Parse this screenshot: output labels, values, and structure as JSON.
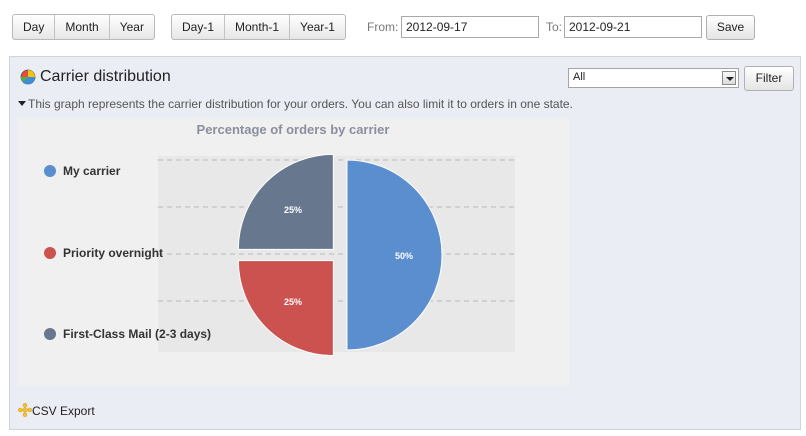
{
  "toolbar": {
    "period_buttons": [
      "Day",
      "Month",
      "Year"
    ],
    "previous_buttons": [
      "Day-1",
      "Month-1",
      "Year-1"
    ],
    "from_label": "From:",
    "from_value": "2012-09-17",
    "to_label": "To:",
    "to_value": "2012-09-21",
    "save_label": "Save"
  },
  "panel": {
    "title": "Carrier distribution",
    "title_icon": "pie-chart-icon",
    "state_select_value": "All",
    "filter_label": "Filter",
    "description": "This graph represents the carrier distribution for your orders. You can also limit it to orders in one state.",
    "csv_export_label": "CSV Export",
    "csv_icon": "asterisk-icon"
  },
  "chart_data": {
    "type": "pie",
    "title": "Percentage of orders by carrier",
    "slices": [
      {
        "name": "My carrier",
        "value": 50,
        "label": "50%",
        "color": "#5a8ecf"
      },
      {
        "name": "Priority overnight",
        "value": 25,
        "label": "25%",
        "color": "#cc524f"
      },
      {
        "name": "First-Class Mail (2-3 days)",
        "value": 25,
        "label": "25%",
        "color": "#67788e"
      }
    ],
    "legend_position": "left",
    "grid": true
  }
}
